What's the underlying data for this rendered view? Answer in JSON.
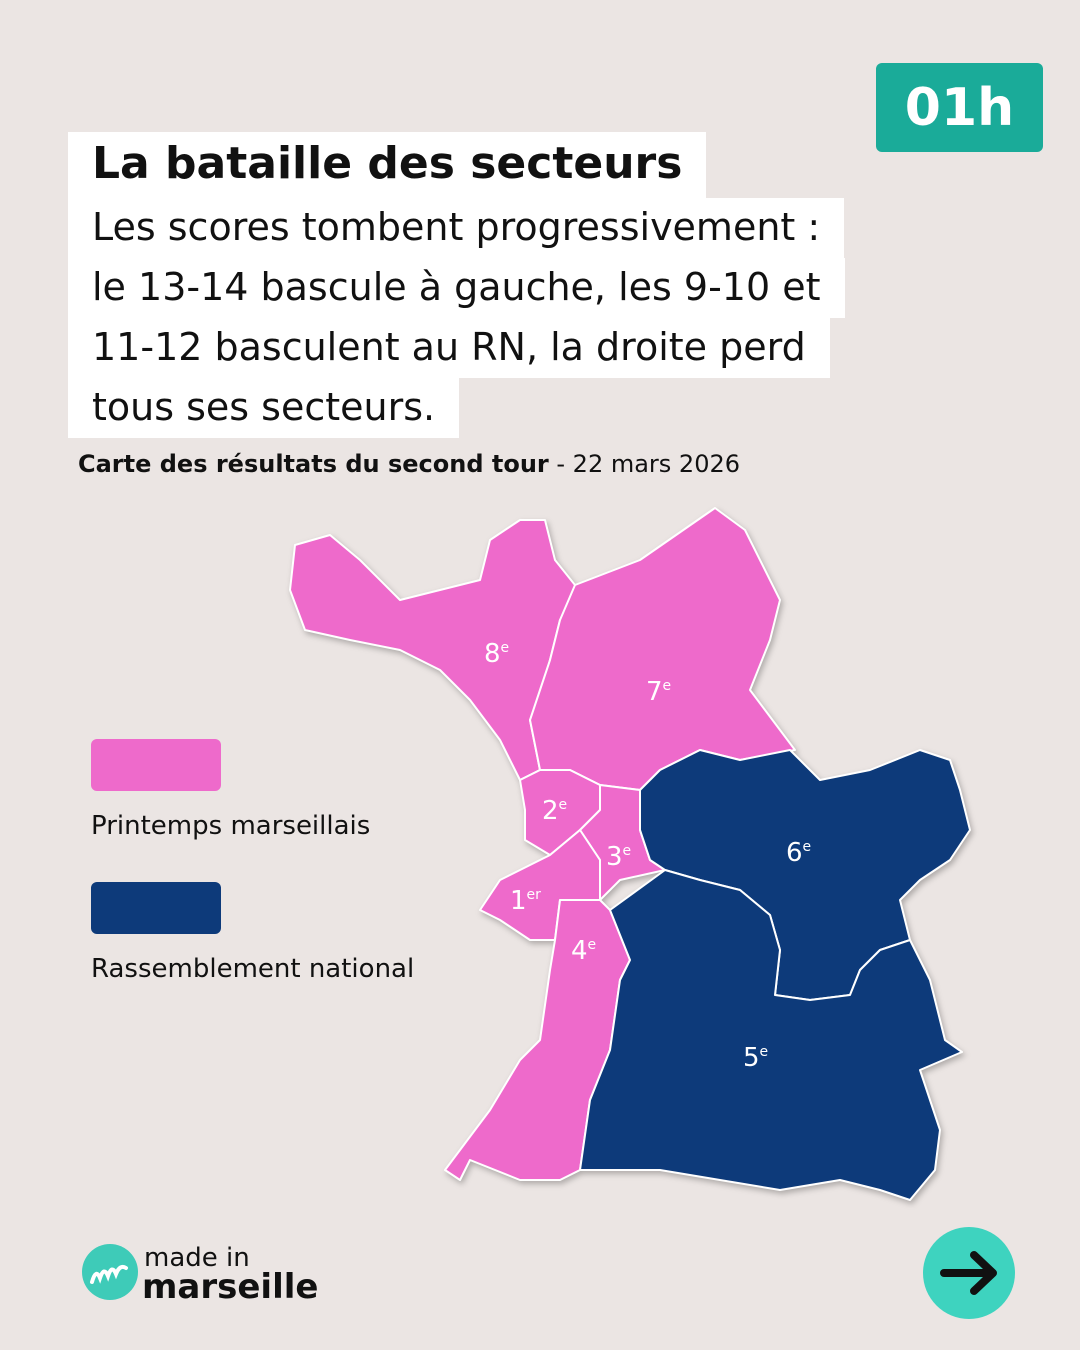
{
  "badge": "01h",
  "header": {
    "title": "La bataille des secteurs",
    "subtitle_lines": [
      "Les scores tombent progressivement :",
      "le 13-14 bascule à gauche, les 9-10 et",
      "11-12 basculent au RN, la droite perd",
      "tous ses secteurs."
    ]
  },
  "caption": {
    "bold": "Carte des résultats du second tour",
    "rest": " - 22 mars 2026"
  },
  "legend": [
    {
      "name": "Printemps marseillais",
      "color": "#ee6acb"
    },
    {
      "name": "Rassemblement national",
      "color": "#0d3a7a"
    }
  ],
  "sectors": [
    {
      "num": "8",
      "sup": "e",
      "color": "#ee6acb"
    },
    {
      "num": "7",
      "sup": "e",
      "color": "#ee6acb"
    },
    {
      "num": "2",
      "sup": "e",
      "color": "#ee6acb"
    },
    {
      "num": "3",
      "sup": "e",
      "color": "#ee6acb"
    },
    {
      "num": "1",
      "sup": "er",
      "color": "#ee6acb"
    },
    {
      "num": "4",
      "sup": "e",
      "color": "#ee6acb"
    },
    {
      "num": "6",
      "sup": "e",
      "color": "#0d3a7a"
    },
    {
      "num": "5",
      "sup": "e",
      "color": "#0d3a7a"
    }
  ],
  "logo": {
    "line1": "made in",
    "line2": "marseille"
  }
}
